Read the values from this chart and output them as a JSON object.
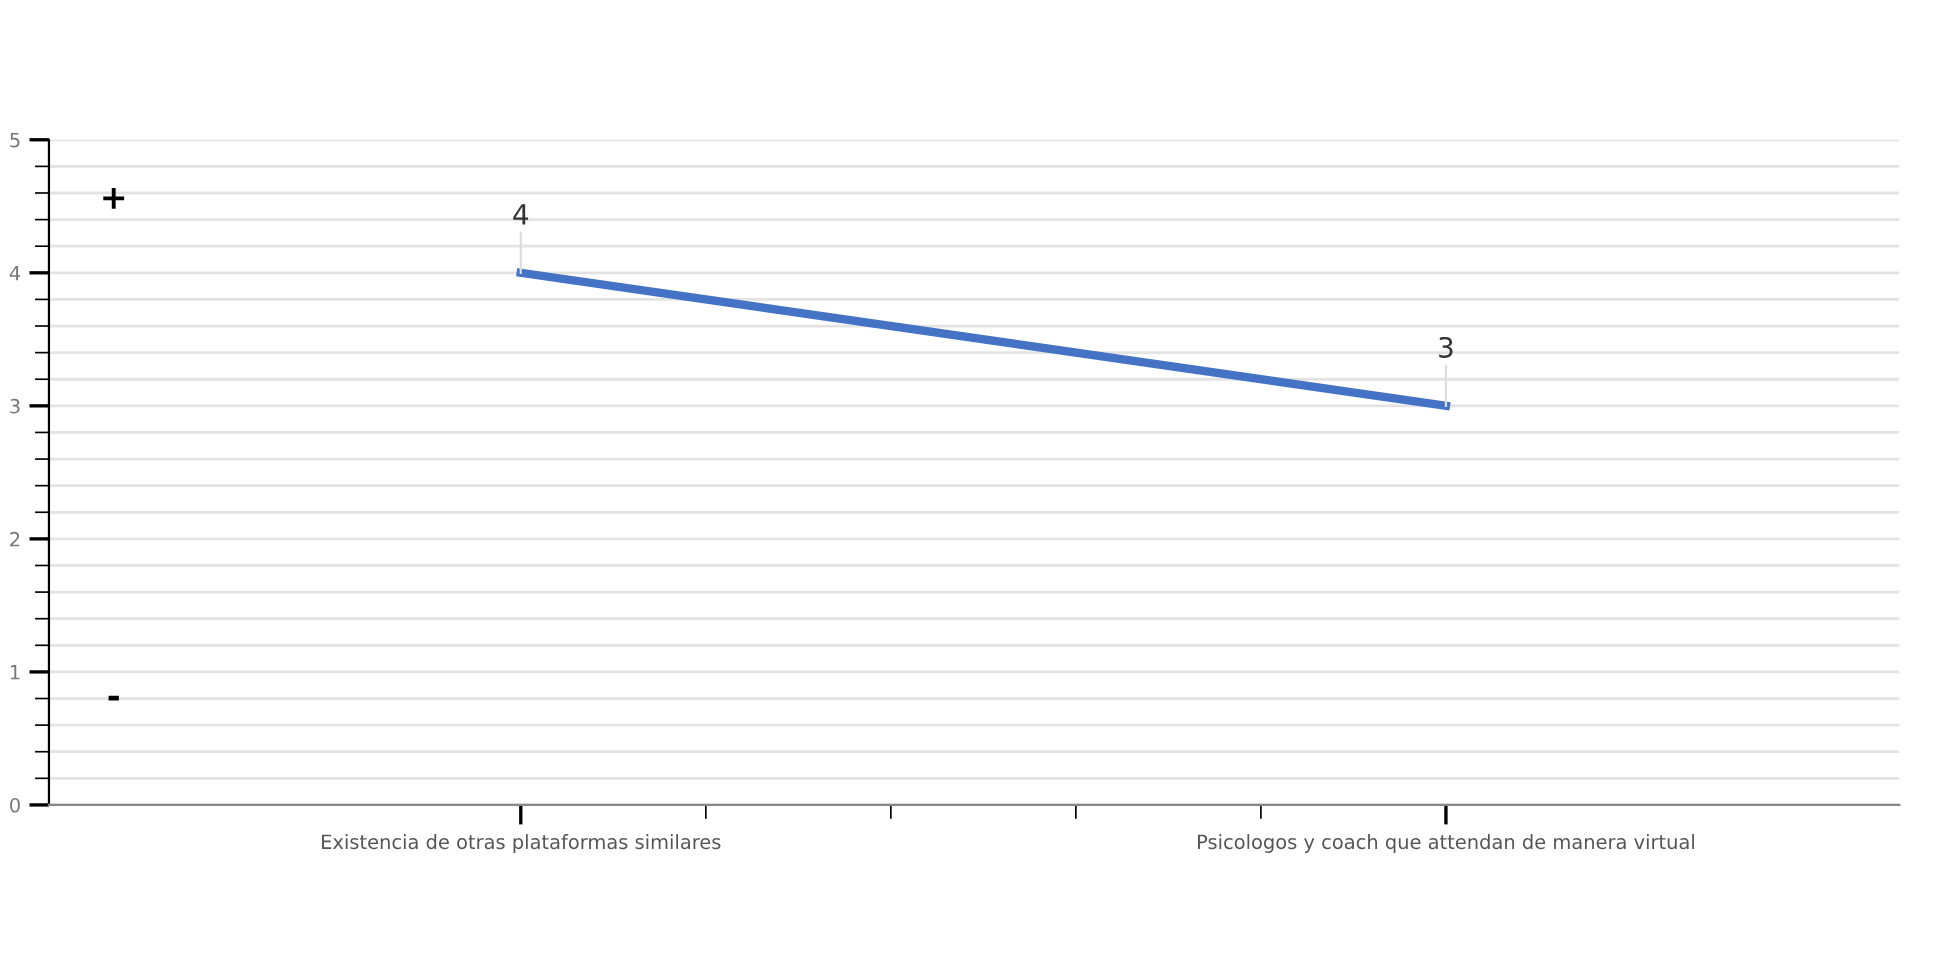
{
  "chart_data": {
    "type": "line",
    "categories": [
      "Existencia de otras plataformas similares",
      "Psicologos y coach que attendan de manera virtual"
    ],
    "series": [
      {
        "color": "#4472c4",
        "values": [
          4,
          3
        ]
      }
    ],
    "ylim": [
      0,
      5
    ],
    "yticks": [
      0,
      1,
      2,
      3,
      4,
      5
    ],
    "grid": "y",
    "marker": "none",
    "line_style": "solid",
    "data_labels": true,
    "annotations": [
      "+",
      "-"
    ]
  }
}
